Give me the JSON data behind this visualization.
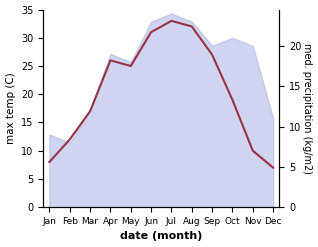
{
  "months": [
    "Jan",
    "Feb",
    "Mar",
    "Apr",
    "May",
    "Jun",
    "Jul",
    "Aug",
    "Sep",
    "Oct",
    "Nov",
    "Dec"
  ],
  "max_temp": [
    8,
    12,
    17,
    26,
    25,
    31,
    33,
    32,
    27,
    19,
    10,
    7
  ],
  "precipitation": [
    9,
    8,
    12,
    19,
    18,
    23,
    24,
    23,
    20,
    21,
    20,
    11
  ],
  "temp_color": "#993344",
  "precip_color": "#b0b8e8",
  "temp_ylim": [
    0,
    35
  ],
  "precip_ylim": [
    0,
    24.5
  ],
  "ylabel_left": "max temp (C)",
  "ylabel_right": "med. precipitation (kg/m2)",
  "xlabel": "date (month)",
  "right_ticks": [
    0,
    5,
    10,
    15,
    20
  ],
  "left_ticks": [
    0,
    5,
    10,
    15,
    20,
    25,
    30,
    35
  ],
  "precip_alpha": 0.6
}
